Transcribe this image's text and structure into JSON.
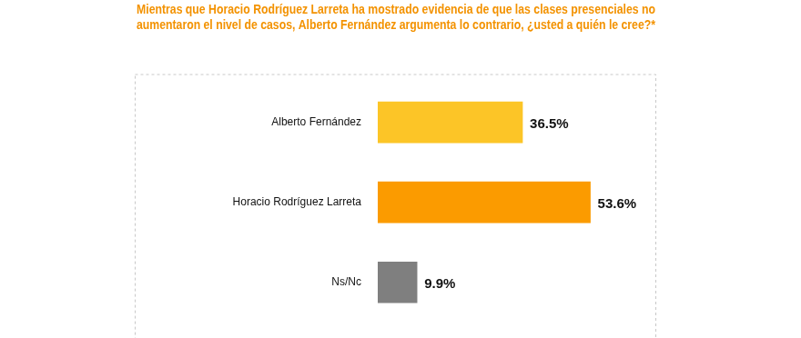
{
  "chart_data": {
    "type": "bar",
    "title": [
      "Mientras que Horacio Rodríguez Larreta ha mostrado evidencia de que las clases presenciales no",
      "aumentaron el nivel de casos, Alberto Fernández argumenta lo contrario, ¿usted a quién le cree?*"
    ],
    "categories": [
      "Alberto Fernández",
      "Horacio Rodríguez Larreta",
      "Ns/Nc"
    ],
    "values": [
      36.5,
      53.6,
      9.9
    ],
    "value_labels": [
      "36.5%",
      "53.6%",
      "9.9%"
    ],
    "colors": [
      "#fcc527",
      "#fb9b00",
      "#7f7f7f"
    ],
    "orientation": "horizontal",
    "xlim": [
      0,
      70
    ],
    "grid": false,
    "data_labels": true,
    "tick_labels": "y"
  }
}
